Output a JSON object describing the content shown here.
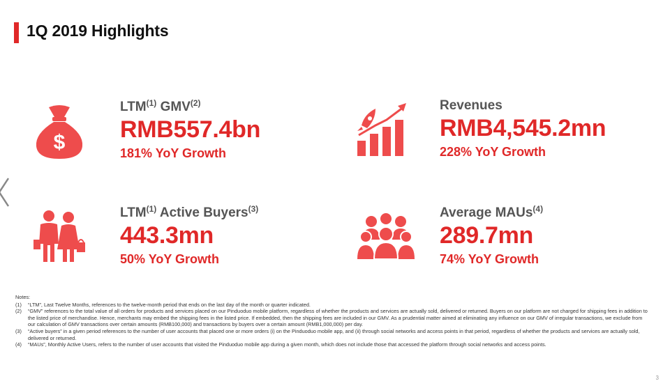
{
  "title": "1Q 2019 Highlights",
  "colors": {
    "accent": "#e02828",
    "label": "#555555"
  },
  "kpis": [
    {
      "label": "LTM",
      "sup1": "(1)",
      "label2": " GMV",
      "sup2": "(2)",
      "value": "RMB557.4bn",
      "growth": "181% YoY Growth",
      "icon": "money-bag-icon"
    },
    {
      "label": "Revenues",
      "value": "RMB4,545.2mn",
      "growth": "228% YoY Growth",
      "icon": "rocket-chart-icon"
    },
    {
      "label": "LTM",
      "sup1": "(1)",
      "label2": " Active Buyers",
      "sup2": "(3)",
      "value": "443.3mn",
      "growth": "50% YoY Growth",
      "icon": "shoppers-icon"
    },
    {
      "label": "Average MAUs",
      "sup1": "(4)",
      "value": "289.7mn",
      "growth": "74% YoY Growth",
      "icon": "crowd-icon"
    }
  ],
  "notes": {
    "heading": "Notes:",
    "items": [
      {
        "num": "(1)",
        "text": "“LTM”, Last Twelve Months, references to the twelve-month period that ends on the last day of the month or quarter indicated."
      },
      {
        "num": "(2)",
        "text": "“GMV” references to the total value of all orders for products and services placed on our Pinduoduo mobile platform, regardless of whether the products and services are actually sold, delivered or returned. Buyers on our platform are not charged for shipping fees in addition to the listed price of merchandise. Hence, merchants may embed the shipping fees in the listed price. If embedded, then the shipping fees are included in our GMV. As a prudential matter aimed at eliminating any influence on our GMV of irregular transactions, we exclude from our calculation of GMV transactions over certain amounts (RMB100,000) and transactions by buyers over a certain amount (RMB1,000,000) per day."
      },
      {
        "num": "(3)",
        "text": "“Active buyers” in a given period references to the number of user accounts that placed one or more orders (i) on the Pinduoduo mobile app, and (ii) through social networks and access points in that period, regardless of whether the products and services are actually sold, delivered or returned."
      },
      {
        "num": "(4)",
        "text": "“MAUs”, Monthly Active Users, refers to the number of user accounts that visited the Pinduoduo mobile app during a given month, which does not include those that accessed the platform through social networks and access points."
      }
    ]
  },
  "page_number": "3"
}
